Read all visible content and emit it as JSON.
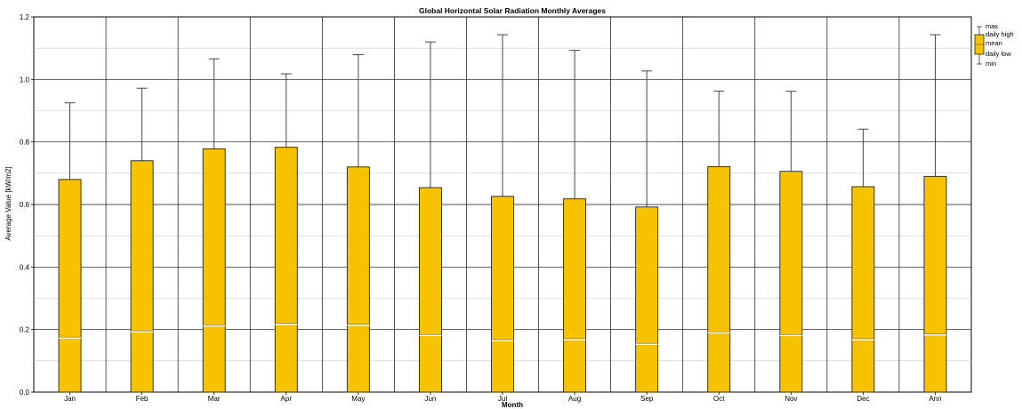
{
  "chart_data": {
    "type": "box",
    "title": "Global Horizontal Solar Radiation Monthly Averages",
    "xlabel": "Month",
    "ylabel": "Average Value [kW/m2]",
    "ylim": [
      0,
      1.2
    ],
    "yticks": [
      "0.0",
      "0.2",
      "0.4",
      "0.6",
      "0.8",
      "1.0",
      "1.2"
    ],
    "grid": true,
    "legend_position": "top-right",
    "fill_color": "#f7c200",
    "categories": [
      "Jan",
      "Feb",
      "Mar",
      "Apr",
      "May",
      "Jun",
      "Jul",
      "Aug",
      "Sep",
      "Oct",
      "Nov",
      "Dec",
      "Ann"
    ],
    "series": [
      {
        "stat": "max",
        "values": [
          0.925,
          0.972,
          1.066,
          1.018,
          1.079,
          1.12,
          1.143,
          1.093,
          1.027,
          0.963,
          0.962,
          0.841,
          1.143
        ]
      },
      {
        "stat": "daily high",
        "values": [
          0.68,
          0.74,
          0.778,
          0.783,
          0.72,
          0.654,
          0.626,
          0.618,
          0.592,
          0.721,
          0.706,
          0.657,
          0.69
        ]
      },
      {
        "stat": "mean",
        "values": [
          0.173,
          0.193,
          0.212,
          0.217,
          0.214,
          0.181,
          0.165,
          0.168,
          0.153,
          0.19,
          0.181,
          0.168,
          0.183
        ]
      },
      {
        "stat": "daily low",
        "values": [
          0,
          0,
          0,
          0,
          0,
          0,
          0,
          0,
          0,
          0,
          0,
          0,
          0
        ]
      },
      {
        "stat": "min",
        "values": [
          0,
          0,
          0,
          0,
          0,
          0,
          0,
          0,
          0,
          0,
          0,
          0,
          0
        ]
      }
    ],
    "legend": [
      "max",
      "daily high",
      "mean",
      "daily low",
      "min"
    ]
  }
}
